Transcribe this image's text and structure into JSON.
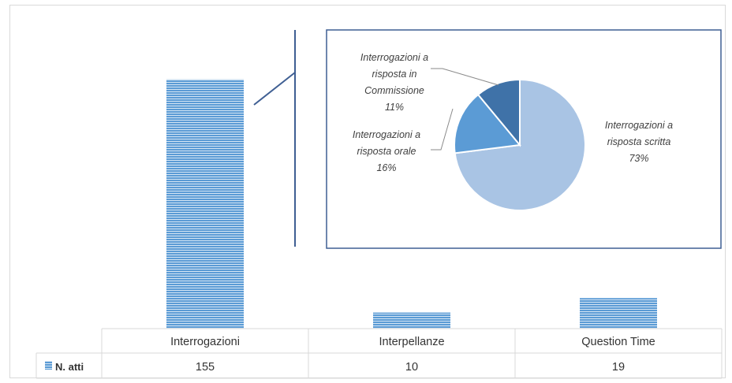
{
  "chart_data": [
    {
      "type": "bar",
      "categories": [
        "Interrogazioni",
        "Interpellanze",
        "Question Time"
      ],
      "series": [
        {
          "name": "N. atti",
          "values": [
            155,
            10,
            19
          ],
          "value_labels": [
            "155",
            "10",
            "19"
          ]
        }
      ],
      "ylim": [
        0,
        175
      ],
      "legend_placement": "left of data table",
      "grid": false,
      "has_data_table": true,
      "bar_pattern": "horizontal-lines",
      "colors": {
        "bar_fill": "#5b9bd5",
        "bar_stripe": "#ffffff",
        "table_border": "#d9d9d9"
      }
    },
    {
      "type": "pie",
      "labels": [
        [
          "Interrogazioni a",
          "risposta scritta",
          "73%"
        ],
        [
          "Interrogazioni a",
          "risposta orale",
          "16%"
        ],
        [
          "Interrogazioni a",
          "risposta in",
          "Commissione",
          "11%"
        ]
      ],
      "values": [
        73,
        16,
        11
      ],
      "colors": [
        "#a9c4e4",
        "#5b9bd5",
        "#3f72a8"
      ],
      "connector_color": "#3f5f93",
      "detail_of": "Interrogazioni"
    }
  ]
}
